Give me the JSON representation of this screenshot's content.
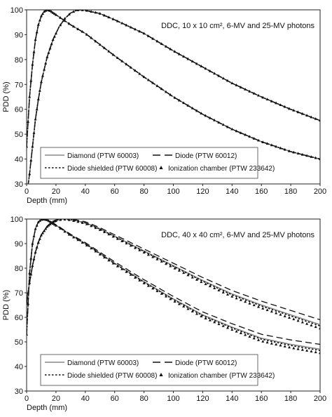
{
  "chart_data": [
    {
      "type": "line",
      "annotation": "DDC, 10 x 10 cm², 6-MV and 25-MV photons",
      "xlabel": "Depth (mm)",
      "ylabel": "PDD (%)",
      "xlim": [
        0,
        200
      ],
      "ylim": [
        30,
        100
      ],
      "xticks": [
        0,
        20,
        40,
        60,
        80,
        100,
        120,
        140,
        160,
        180,
        200
      ],
      "yticks": [
        30,
        40,
        50,
        60,
        70,
        80,
        90,
        100
      ],
      "grid": false,
      "legend_position": "lower-left",
      "legend": [
        {
          "label": "Diamond (PTW 60003)",
          "style": "solid"
        },
        {
          "label": "Diode (PTW 60012)",
          "style": "long-dash"
        },
        {
          "label": "Diode shielded (PTW 60008)",
          "style": "dotted"
        },
        {
          "label": "Ionization chamber (PTW 233642)",
          "style": "triangle-markers"
        }
      ],
      "beams": [
        {
          "energy": "6-MV",
          "x": [
            0,
            2,
            4,
            6,
            8,
            10,
            12,
            14,
            16,
            20,
            30,
            40,
            60,
            80,
            100,
            120,
            140,
            160,
            180,
            200
          ],
          "y": [
            45,
            65,
            78,
            88,
            94,
            97.5,
            99.3,
            100,
            99.6,
            98,
            94,
            90.5,
            81.5,
            73,
            65,
            58,
            52,
            47,
            43,
            40
          ]
        },
        {
          "energy": "25-MV",
          "x": [
            0,
            2,
            4,
            6,
            8,
            10,
            14,
            18,
            22,
            26,
            30,
            34,
            36,
            40,
            50,
            60,
            80,
            100,
            120,
            140,
            160,
            180,
            200
          ],
          "y": [
            25,
            34,
            45,
            56,
            64,
            71,
            81,
            88,
            93,
            96.5,
            98.7,
            99.8,
            100,
            99.8,
            98.5,
            96,
            90.5,
            83.5,
            77,
            70.5,
            65,
            60,
            55.5
          ]
        }
      ],
      "series_offsets": {
        "diamond": 0,
        "diode": 0,
        "diode_shielded": 0,
        "ionization_chamber": 0
      }
    },
    {
      "type": "line",
      "annotation": "DDC, 40 x 40 cm², 6-MV and 25-MV photons",
      "xlabel": "Depth (mm)",
      "ylabel": "PDD (%)",
      "xlim": [
        0,
        200
      ],
      "ylim": [
        30,
        100
      ],
      "xticks": [
        0,
        20,
        40,
        60,
        80,
        100,
        120,
        140,
        160,
        180,
        200
      ],
      "yticks": [
        30,
        40,
        50,
        60,
        70,
        80,
        90,
        100
      ],
      "grid": false,
      "legend_position": "lower-left",
      "legend": [
        {
          "label": "Diamond (PTW 60003)",
          "style": "solid"
        },
        {
          "label": "Diode (PTW 60012)",
          "style": "long-dash"
        },
        {
          "label": "Diode shielded (PTW 60008)",
          "style": "dotted"
        },
        {
          "label": "Ionization chamber (PTW 233642)",
          "style": "triangle-markers"
        }
      ],
      "beams": [
        {
          "energy": "6-MV",
          "x": [
            0,
            2,
            4,
            6,
            8,
            10,
            12,
            14,
            16,
            20,
            30,
            40,
            60,
            80,
            100,
            120,
            140,
            160,
            180,
            200
          ],
          "y": [
            53,
            78,
            90,
            96,
            98.8,
            99.8,
            100,
            99.7,
            99,
            97.5,
            93.5,
            90,
            82,
            74.5,
            67.5,
            61,
            56,
            51.5,
            49,
            47
          ]
        },
        {
          "energy": "25-MV",
          "x": [
            0,
            2,
            4,
            6,
            8,
            10,
            14,
            18,
            22,
            26,
            30,
            40,
            50,
            60,
            80,
            100,
            120,
            140,
            160,
            180,
            200
          ],
          "y": [
            66,
            74,
            81,
            86.5,
            90.5,
            93.5,
            97,
            99,
            99.8,
            100,
            99.8,
            98.5,
            96,
            93,
            87,
            81,
            75,
            69.5,
            65,
            61,
            57
          ]
        }
      ],
      "series_offsets": {
        "diamond": 0,
        "diode": 2,
        "diode_shielded": -0.5,
        "ionization_chamber": -1.5
      }
    }
  ]
}
